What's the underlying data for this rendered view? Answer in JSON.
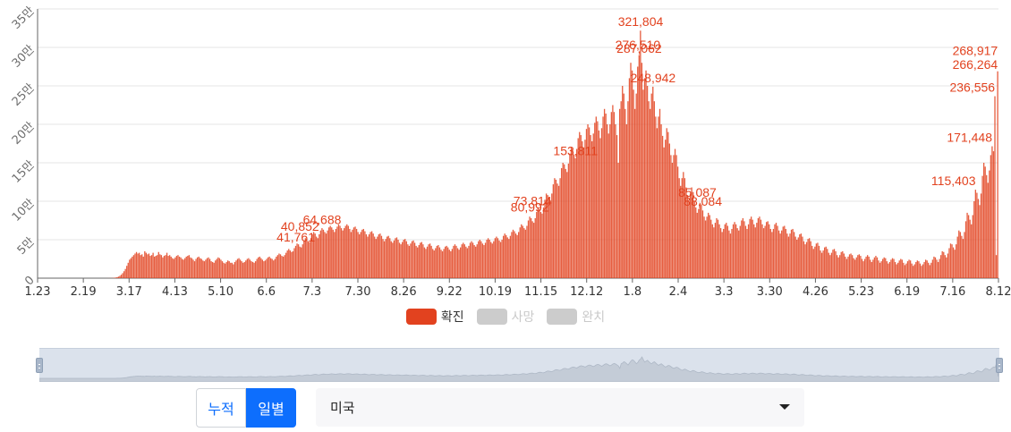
{
  "chart_data": {
    "type": "bar",
    "title": "",
    "xlabel": "",
    "ylabel": "",
    "ylim": [
      0,
      350000
    ],
    "yticks": [
      {
        "value": 0,
        "label": "0"
      },
      {
        "value": 50000,
        "label": "5만"
      },
      {
        "value": 100000,
        "label": "10만"
      },
      {
        "value": 150000,
        "label": "15만"
      },
      {
        "value": 200000,
        "label": "20만"
      },
      {
        "value": 250000,
        "label": "25만"
      },
      {
        "value": 300000,
        "label": "30만"
      },
      {
        "value": 350000,
        "label": "35만"
      }
    ],
    "x_tick_labels": [
      "1.23",
      "2.19",
      "3.17",
      "4.13",
      "5.10",
      "6.6",
      "7.3",
      "7.30",
      "8.26",
      "9.22",
      "10.19",
      "11.15",
      "12.12",
      "1.8",
      "2.4",
      "3.3",
      "3.30",
      "4.26",
      "5.23",
      "6.19",
      "7.16",
      "8.12"
    ],
    "series": [
      {
        "name": "확진",
        "color": "#e2421f",
        "values": [
          0,
          0,
          0,
          0,
          0,
          0,
          0,
          0,
          0,
          0,
          0,
          0,
          0,
          0,
          0,
          0,
          0,
          0,
          0,
          0,
          0,
          0,
          0,
          0,
          0,
          0,
          0,
          0,
          0,
          0,
          0,
          0,
          0,
          0,
          0,
          0,
          0,
          0,
          0,
          0,
          0,
          0,
          0,
          0,
          0,
          0,
          1,
          2,
          5,
          10,
          30,
          60,
          100,
          150,
          300,
          500,
          800,
          1200,
          2000,
          3000,
          4500,
          6500,
          9000,
          12000,
          16000,
          20000,
          24000,
          26000,
          28000,
          30000,
          32000,
          34000,
          32000,
          33000,
          30000,
          31000,
          28000,
          35000,
          33000,
          31000,
          32000,
          29000,
          30000,
          33000,
          28000,
          29000,
          30000,
          34000,
          31000,
          30000,
          27000,
          29000,
          30000,
          33000,
          29000,
          30000,
          28000,
          26000,
          25000,
          27000,
          29000,
          30000,
          28000,
          27000,
          25000,
          24000,
          26000,
          28000,
          29000,
          30000,
          27000,
          26000,
          24000,
          22000,
          25000,
          27000,
          28000,
          26000,
          25000,
          23000,
          22000,
          24000,
          26000,
          27000,
          25000,
          22000,
          21000,
          20000,
          23000,
          25000,
          27000,
          26000,
          24000,
          22000,
          20000,
          19000,
          21000,
          23000,
          22000,
          20000,
          20000,
          18000,
          21000,
          23000,
          25000,
          26000,
          24000,
          22000,
          20000,
          21000,
          23000,
          25000,
          26000,
          24000,
          22000,
          21000,
          20000,
          22000,
          25000,
          27000,
          28000,
          26000,
          24000,
          22000,
          23000,
          25000,
          27000,
          28000,
          26000,
          25000,
          23000,
          25000,
          28000,
          30000,
          32000,
          31000,
          29000,
          28000,
          30000,
          33000,
          36000,
          38000,
          36000,
          34000,
          35000,
          39000,
          42000,
          45000,
          44000,
          41000,
          40000,
          44000,
          48000,
          52000,
          51000,
          48000,
          47000,
          52000,
          57000,
          60000,
          58000,
          54000,
          52000,
          57000,
          62000,
          65000,
          63000,
          60000,
          58000,
          62000,
          66000,
          68000,
          66000,
          63000,
          60000,
          64000,
          67000,
          70000,
          68000,
          65000,
          62000,
          65000,
          68000,
          70000,
          68000,
          64000,
          60000,
          63000,
          66000,
          67000,
          64000,
          60000,
          57000,
          60000,
          63000,
          64000,
          61000,
          57000,
          54000,
          57000,
          60000,
          61000,
          58000,
          54000,
          51000,
          54000,
          57000,
          58000,
          55000,
          51000,
          48000,
          51000,
          54000,
          55000,
          52000,
          48000,
          46000,
          49000,
          52000,
          53000,
          50000,
          46000,
          44000,
          47000,
          50000,
          51000,
          48000,
          44000,
          42000,
          45000,
          48000,
          49000,
          46000,
          42000,
          40000,
          43000,
          46000,
          47000,
          44000,
          40000,
          38000,
          41000,
          44000,
          45000,
          42000,
          38000,
          36000,
          39000,
          42000,
          43000,
          40000,
          37000,
          35000,
          38000,
          41000,
          42000,
          40000,
          37000,
          35000,
          38000,
          42000,
          44000,
          42000,
          39000,
          37000,
          40000,
          44000,
          46000,
          44000,
          41000,
          39000,
          42000,
          46000,
          48000,
          46000,
          43000,
          41000,
          44000,
          48000,
          50000,
          48000,
          45000,
          43000,
          46000,
          50000,
          52000,
          50000,
          47000,
          45000,
          48000,
          52000,
          54000,
          52000,
          49000,
          47000,
          50000,
          55000,
          58000,
          56000,
          53000,
          51000,
          55000,
          60000,
          63000,
          61000,
          58000,
          56000,
          60000,
          66000,
          70000,
          68000,
          65000,
          63000,
          68000,
          75000,
          80000,
          78000,
          74000,
          72000,
          78000,
          86000,
          92000,
          90000,
          86000,
          84000,
          92000,
          102000,
          110000,
          108000,
          104000,
          101000,
          110000,
          122000,
          130000,
          128000,
          123000,
          120000,
          130000,
          143000,
          150000,
          148000,
          142000,
          138000,
          149000,
          162000,
          170000,
          168000,
          161000,
          156000,
          168000,
          182000,
          190000,
          186000,
          178000,
          170000,
          180000,
          194000,
          200000,
          196000,
          186000,
          178000,
          188000,
          202000,
          210000,
          204000,
          192000,
          182000,
          195000,
          210000,
          220000,
          214000,
          200000,
          188000,
          200000,
          216000,
          225000,
          216000,
          200000,
          186000,
          150000,
          220000,
          230000,
          250000,
          240000,
          220000,
          200000,
          230000,
          260000,
          280000,
          270000,
          245000,
          220000,
          240000,
          275000,
          290000,
          321804,
          280000,
          245000,
          260000,
          270000,
          250000,
          230000,
          220000,
          240000,
          248942,
          230000,
          210000,
          195000,
          210000,
          220000,
          200000,
          185000,
          170000,
          180000,
          195000,
          190000,
          175000,
          160000,
          150000,
          160000,
          168000,
          160000,
          145000,
          130000,
          120000,
          130000,
          138000,
          130000,
          118000,
          108000,
          100000,
          110000,
          118000,
          112000,
          100000,
          92000,
          85000,
          90000,
          98000,
          96000,
          88000,
          80000,
          75000,
          80000,
          85000,
          82000,
          76000,
          70000,
          66000,
          72000,
          78000,
          76000,
          70000,
          65000,
          60000,
          64000,
          70000,
          72000,
          68000,
          62000,
          58000,
          64000,
          70000,
          73000,
          70000,
          65000,
          62000,
          68000,
          75000,
          78000,
          74000,
          68000,
          64000,
          70000,
          77000,
          80000,
          76000,
          70000,
          66000,
          72000,
          78000,
          80000,
          76000,
          70000,
          65000,
          68000,
          73000,
          74000,
          70000,
          64000,
          60000,
          64000,
          70000,
          72000,
          68000,
          62000,
          58000,
          62000,
          67000,
          68000,
          64000,
          58000,
          54000,
          58000,
          63000,
          64000,
          60000,
          54000,
          50000,
          53000,
          57000,
          58000,
          54000,
          48000,
          44000,
          47000,
          51000,
          52000,
          48000,
          42000,
          38000,
          41000,
          45000,
          46000,
          42000,
          36000,
          33000,
          36000,
          40000,
          41000,
          38000,
          33000,
          30000,
          33000,
          37000,
          38000,
          35000,
          30000,
          27000,
          30000,
          34000,
          35000,
          32000,
          28000,
          25000,
          28000,
          31000,
          32000,
          30000,
          26000,
          24000,
          27000,
          30000,
          31000,
          29000,
          25000,
          22000,
          25000,
          28000,
          30000,
          28000,
          24000,
          21000,
          24000,
          27000,
          29000,
          27000,
          23000,
          20000,
          22000,
          25000,
          27000,
          26000,
          22000,
          19000,
          21000,
          24000,
          26000,
          25000,
          21000,
          18000,
          20000,
          23000,
          25000,
          24000,
          20000,
          17000,
          19000,
          22000,
          24000,
          23000,
          19000,
          16000,
          18000,
          21000,
          23000,
          22000,
          19000,
          16000,
          18000,
          21000,
          24000,
          23000,
          20000,
          17000,
          20000,
          24000,
          28000,
          27000,
          24000,
          21000,
          25000,
          30000,
          35000,
          34000,
          30000,
          27000,
          32000,
          39000,
          45000,
          44000,
          40000,
          37000,
          44000,
          54000,
          62000,
          60000,
          55000,
          51000,
          60000,
          74000,
          85000,
          82000,
          76000,
          70000,
          82000,
          100000,
          115000,
          111000,
          103000,
          95000,
          110000,
          133000,
          150000,
          145000,
          134000,
          124000,
          140000,
          160000,
          171448,
          165000,
          236556,
          30000,
          268917
        ]
      },
      {
        "name": "사망",
        "values": []
      },
      {
        "name": "완치",
        "values": []
      }
    ],
    "data_labels": [
      {
        "text": "321,804"
      },
      {
        "text": "287,062"
      },
      {
        "text": "276,510"
      },
      {
        "text": "266,264"
      },
      {
        "text": "248,942"
      },
      {
        "text": "236,556"
      },
      {
        "text": "268,917"
      },
      {
        "text": "171,448"
      },
      {
        "text": "153,811"
      },
      {
        "text": "115,403"
      },
      {
        "text": "88,084"
      },
      {
        "text": "85,087"
      },
      {
        "text": "80,992"
      },
      {
        "text": "73,814"
      },
      {
        "text": "64,688"
      },
      {
        "text": "41,761"
      },
      {
        "text": "40,852"
      }
    ],
    "legend_position": "bottom-center",
    "grid": true
  },
  "legend": [
    {
      "label": "확진",
      "color": "#e2421f",
      "active": true
    },
    {
      "label": "사망",
      "color": "#cccccc",
      "active": false
    },
    {
      "label": "완치",
      "color": "#cccccc",
      "active": false
    }
  ],
  "controls": {
    "cumulative_label": "누적",
    "daily_label": "일별",
    "country": "미국"
  }
}
